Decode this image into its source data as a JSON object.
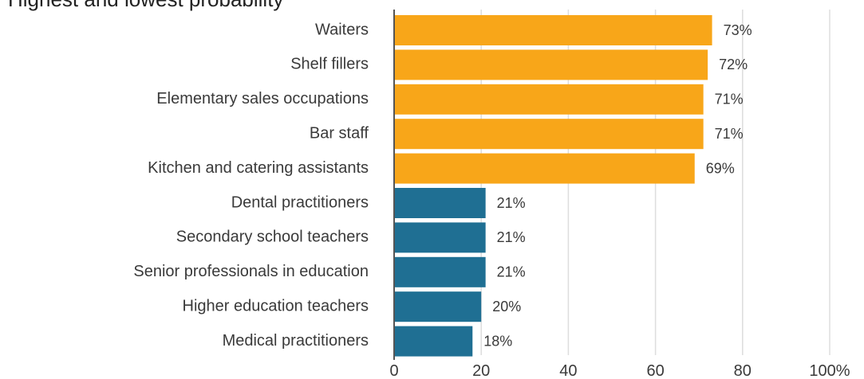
{
  "chart_data": {
    "type": "bar",
    "orientation": "horizontal",
    "title": "Highest and lowest probability",
    "categories": [
      "Waiters",
      "Shelf fillers",
      "Elementary sales occupations",
      "Bar staff",
      "Kitchen and catering assistants",
      "Dental practitioners",
      "Secondary school teachers",
      "Senior professionals in education",
      "Higher education teachers",
      "Medical practitioners"
    ],
    "values": [
      73,
      72,
      71,
      71,
      69,
      21,
      21,
      21,
      20,
      18
    ],
    "value_labels": [
      "73%",
      "72%",
      "71%",
      "71%",
      "69%",
      "21%",
      "21%",
      "21%",
      "20%",
      "18%"
    ],
    "groups": [
      "highest",
      "highest",
      "highest",
      "highest",
      "highest",
      "lowest",
      "lowest",
      "lowest",
      "lowest",
      "lowest"
    ],
    "colors": {
      "highest": "#f8a619",
      "lowest": "#1f6f93",
      "grid": "#dddddd",
      "axis": "#555555"
    },
    "xlim": [
      0,
      100
    ],
    "x_ticks": [
      0,
      20,
      40,
      60,
      80,
      100
    ],
    "x_tick_labels": [
      "0",
      "20",
      "40",
      "60",
      "80",
      "100%"
    ],
    "grid": true,
    "legend": "none"
  }
}
